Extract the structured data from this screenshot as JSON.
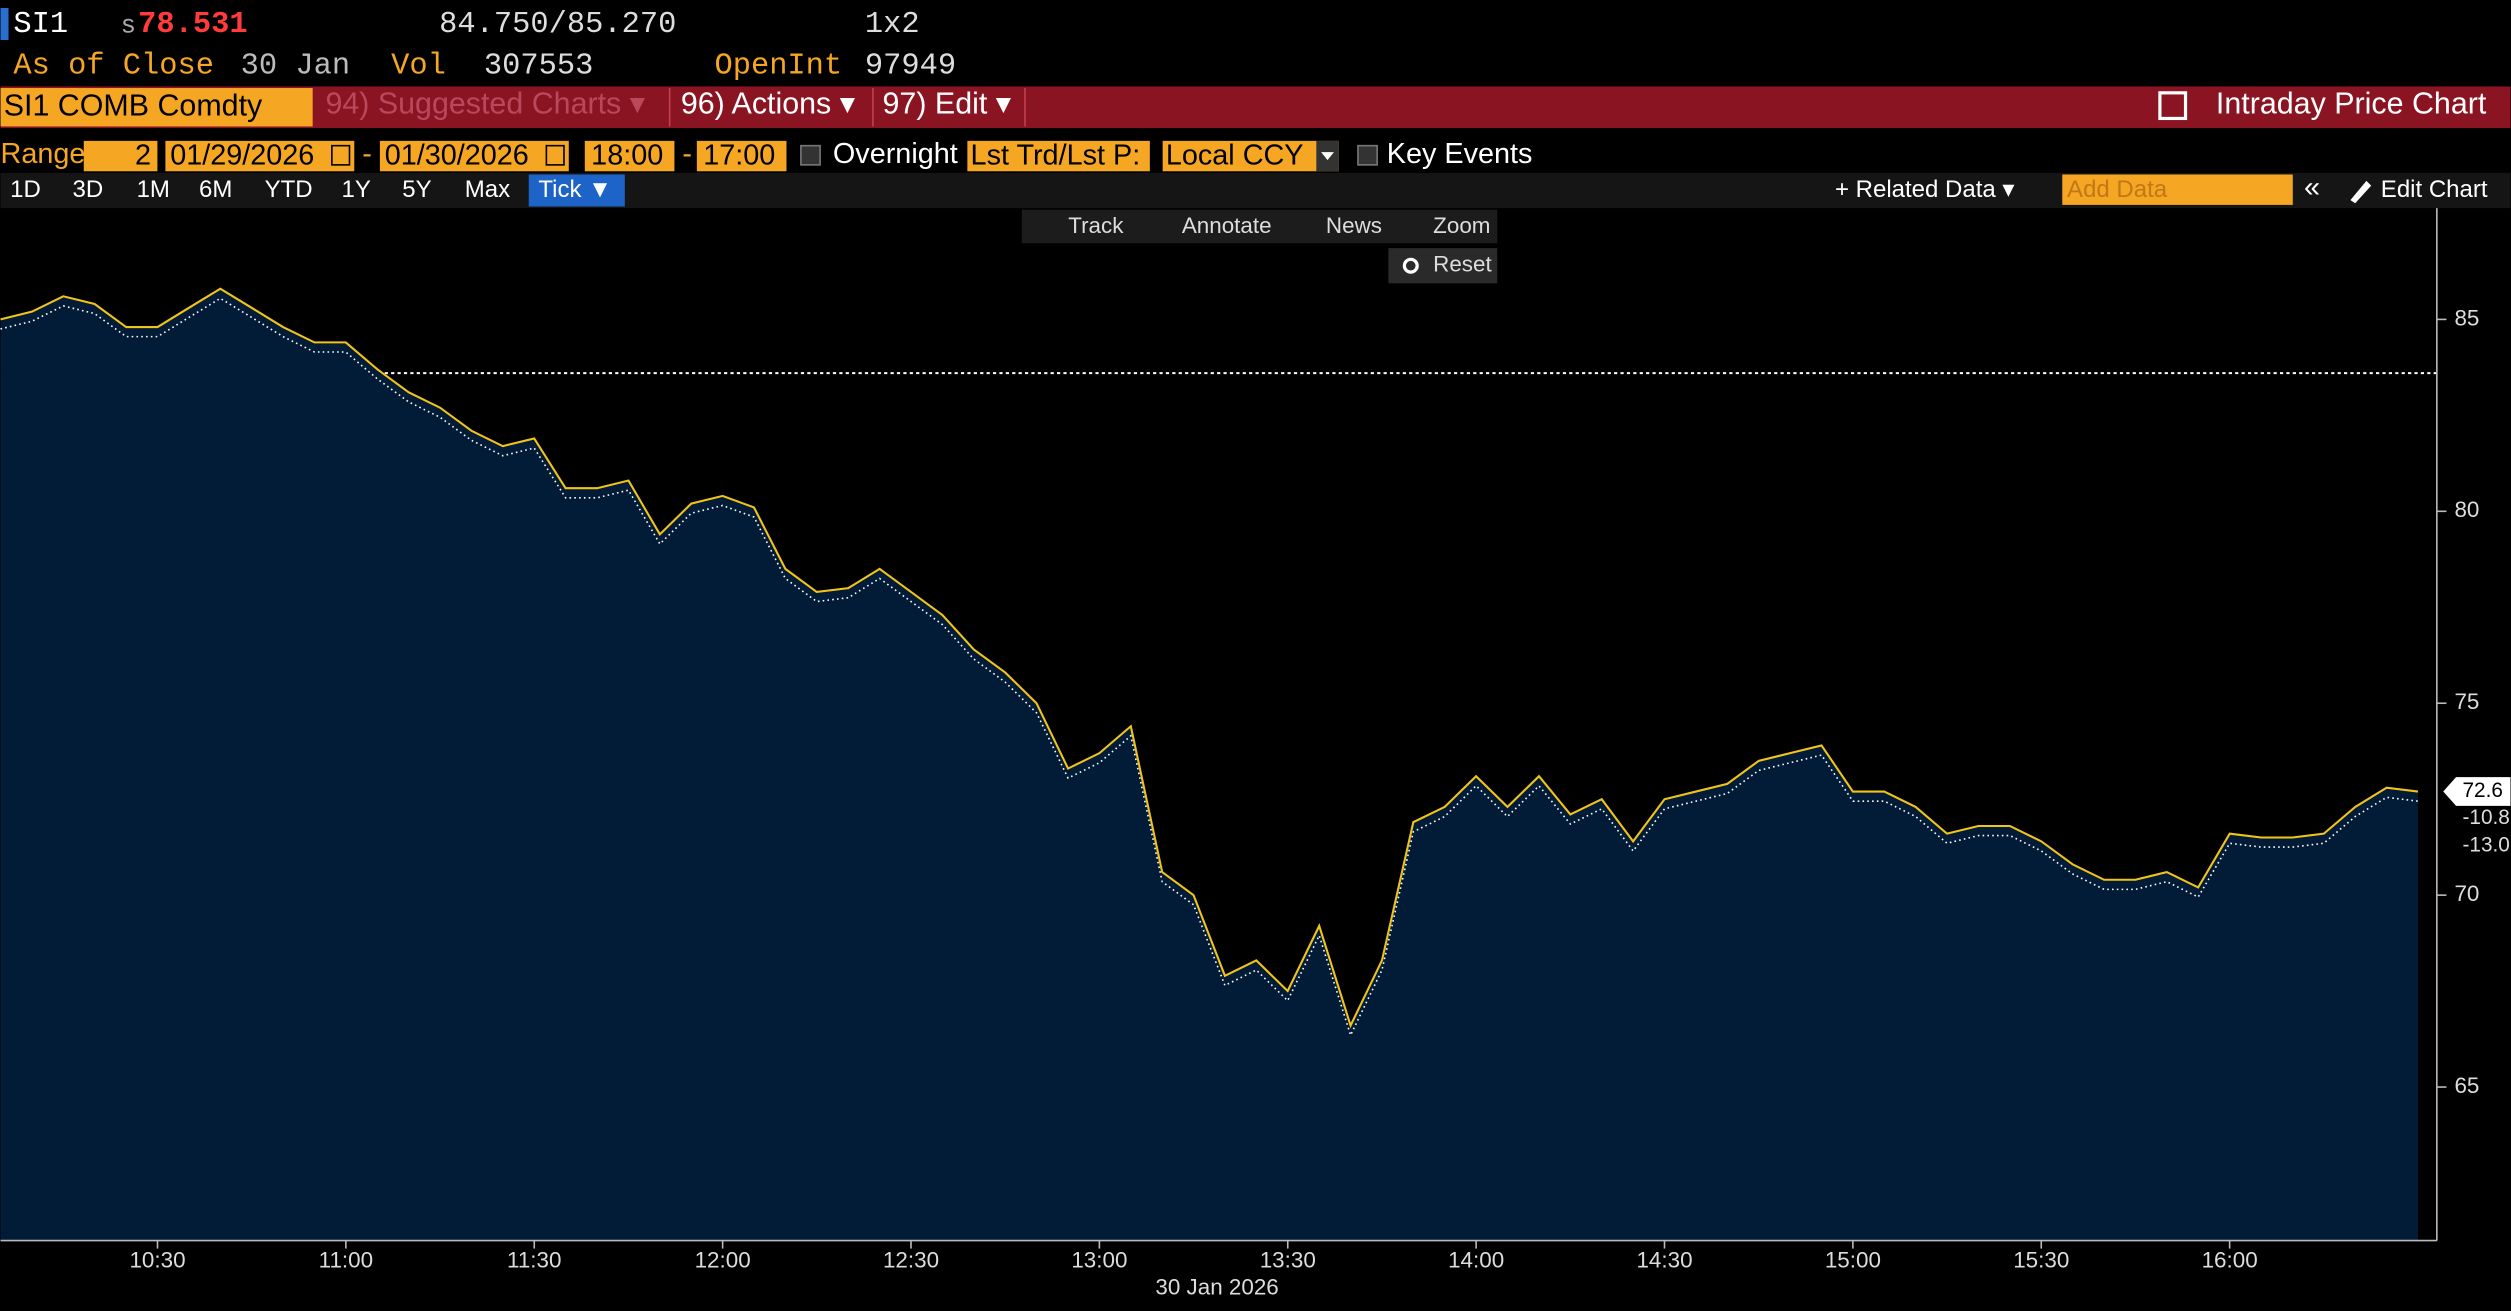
{
  "header": {
    "ticker": "SI1",
    "price_prefix": "s",
    "price": "78.531",
    "bid_ask": "84.750/85.270",
    "size": "1x2",
    "as_of": "As of Close",
    "date": "30 Jan",
    "vol_label": "Vol",
    "vol": "307553",
    "oi_label": "OpenInt",
    "oi": "97949"
  },
  "toolbar": {
    "security": "SI1 COMB Comdty",
    "menus": [
      "94) Suggested Charts ▾",
      "96) Actions ▾",
      "97) Edit ▾"
    ],
    "panel_title": "Intraday Price Chart"
  },
  "range_bar": {
    "label": "Range",
    "periods": "2",
    "start_date": "01/29/2026",
    "separator": "-",
    "end_date": "01/30/2026",
    "start_time": "18:00",
    "end_time": "17:00",
    "overnight": "Overnight",
    "price_type": "Lst Trd/Lst P:",
    "currency": "Local CCY",
    "key_events": "Key Events"
  },
  "period_buttons": [
    "1D",
    "3D",
    "1M",
    "6M",
    "YTD",
    "1Y",
    "5Y",
    "Max",
    "Tick ▼"
  ],
  "right_buttons": {
    "related": "+ Related Data ▾",
    "add_data": "Add Data",
    "collapse": "«",
    "edit": "Edit Chart"
  },
  "chart_tools": [
    "Track",
    "Annotate",
    "News",
    "Zoom",
    "Reset"
  ],
  "chart_data": {
    "type": "line",
    "x": [
      "10:05",
      "10:10",
      "10:15",
      "10:20",
      "10:25",
      "10:30",
      "10:35",
      "10:40",
      "10:45",
      "10:50",
      "10:55",
      "11:00",
      "11:05",
      "11:10",
      "11:15",
      "11:20",
      "11:25",
      "11:30",
      "11:35",
      "11:40",
      "11:45",
      "11:50",
      "11:55",
      "12:00",
      "12:05",
      "12:10",
      "12:15",
      "12:20",
      "12:25",
      "12:30",
      "12:35",
      "12:40",
      "12:45",
      "12:50",
      "12:55",
      "13:00",
      "13:05",
      "13:10",
      "13:15",
      "13:20",
      "13:25",
      "13:30",
      "13:35",
      "13:40",
      "13:45",
      "13:50",
      "13:55",
      "14:00",
      "14:05",
      "14:10",
      "14:15",
      "14:20",
      "14:25",
      "14:30",
      "14:35",
      "14:40",
      "14:45",
      "14:50",
      "14:55",
      "15:00",
      "15:05",
      "15:10",
      "15:15",
      "15:20",
      "15:25",
      "15:30",
      "15:35",
      "15:40",
      "15:45",
      "15:50",
      "15:55",
      "16:00",
      "16:05",
      "16:10",
      "16:15",
      "16:20",
      "16:25",
      "16:30"
    ],
    "values": [
      85.0,
      85.2,
      85.6,
      85.4,
      84.8,
      84.8,
      85.3,
      85.8,
      85.3,
      84.8,
      84.4,
      84.4,
      83.7,
      83.1,
      82.7,
      82.1,
      81.7,
      81.9,
      80.6,
      80.6,
      80.8,
      79.4,
      80.2,
      80.4,
      80.1,
      78.5,
      77.9,
      78.0,
      78.5,
      77.9,
      77.3,
      76.4,
      75.8,
      75.0,
      73.3,
      73.7,
      74.4,
      70.6,
      70.0,
      67.9,
      68.3,
      67.5,
      69.2,
      66.6,
      68.3,
      71.9,
      72.3,
      73.1,
      72.3,
      73.1,
      72.1,
      72.5,
      71.4,
      72.5,
      72.7,
      72.9,
      73.5,
      73.7,
      73.9,
      72.7,
      72.7,
      72.3,
      71.6,
      71.8,
      71.8,
      71.4,
      70.8,
      70.4,
      70.4,
      70.6,
      70.2,
      71.6,
      71.5,
      71.5,
      71.6,
      72.3,
      72.8,
      72.7
    ],
    "color": "#f2c417",
    "fill": "#021c38",
    "xlim": [
      "10:05",
      "16:33"
    ],
    "xticks": [
      "10:30",
      "11:00",
      "11:30",
      "12:00",
      "12:30",
      "13:00",
      "13:30",
      "14:00",
      "14:30",
      "15:00",
      "15:30",
      "16:00"
    ],
    "xlabel": "30 Jan 2026",
    "ylim": [
      61,
      87.9
    ],
    "yticks": [
      65,
      70,
      75,
      80,
      85
    ],
    "reference_line": 83.6,
    "last_labels": [
      "72.6",
      "-10.8",
      "-13.0"
    ]
  }
}
